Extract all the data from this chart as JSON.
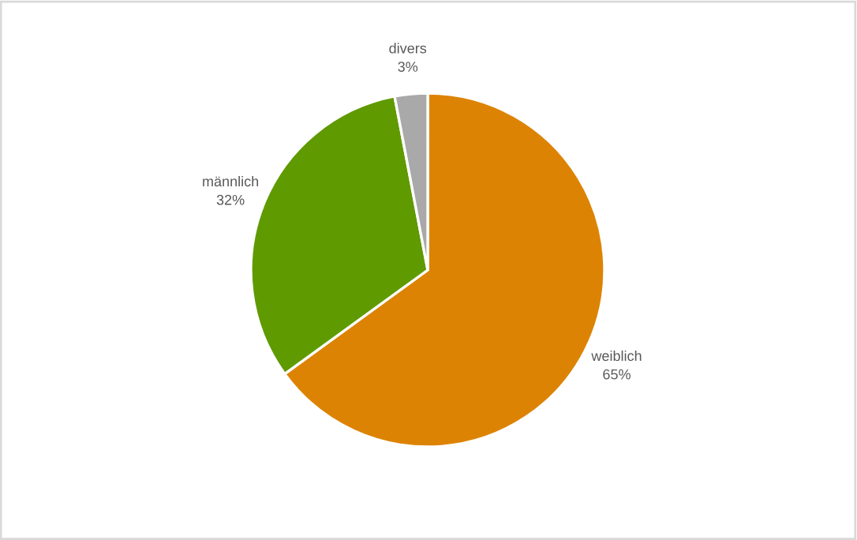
{
  "chart_data": {
    "type": "pie",
    "categories": [
      "weiblich",
      "männlich",
      "divers"
    ],
    "values": [
      65,
      32,
      3
    ],
    "value_labels": [
      "65%",
      "32%",
      "3%"
    ],
    "colors": [
      "#dd8304",
      "#5f9a00",
      "#a9a9a9"
    ]
  }
}
